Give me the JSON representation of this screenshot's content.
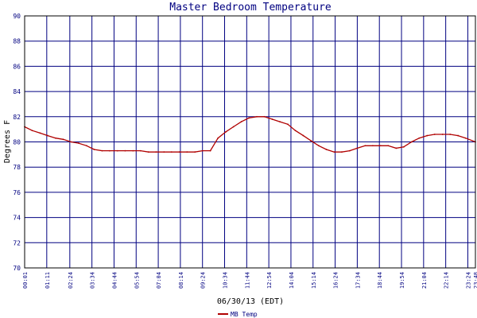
{
  "chart_data": {
    "type": "line",
    "title": "Master Bedroom Temperature",
    "xlabel": "06/30/13 (EDT)",
    "ylabel": "Degrees F",
    "ylim": [
      70,
      90
    ],
    "yticks": [
      70,
      72,
      74,
      76,
      78,
      80,
      82,
      84,
      86,
      88,
      90
    ],
    "xlim": [
      "00:01",
      "23:48"
    ],
    "xticks": [
      "00:01",
      "01:11",
      "02:24",
      "03:34",
      "04:44",
      "05:54",
      "07:04",
      "08:14",
      "09:24",
      "10:34",
      "11:44",
      "12:54",
      "14:04",
      "15:14",
      "16:24",
      "17:34",
      "18:44",
      "19:54",
      "21:04",
      "22:14",
      "23:24",
      "23:48"
    ],
    "grid": true,
    "legend": "bottom-left",
    "colors": {
      "grid": "#000080",
      "series": "#b00000",
      "text": "#000080",
      "frame": "#000000"
    },
    "series": [
      {
        "name": "MB Temp",
        "x": [
          "00:01",
          "00:25",
          "00:50",
          "01:14",
          "01:39",
          "02:03",
          "02:28",
          "02:52",
          "03:17",
          "03:41",
          "04:06",
          "04:30",
          "04:55",
          "05:19",
          "05:44",
          "06:08",
          "06:33",
          "06:57",
          "07:22",
          "07:46",
          "08:11",
          "08:35",
          "09:00",
          "09:24",
          "09:49",
          "10:13",
          "10:38",
          "11:02",
          "11:27",
          "11:51",
          "12:16",
          "12:40",
          "13:05",
          "13:29",
          "13:54",
          "14:18",
          "14:43",
          "15:07",
          "15:32",
          "15:56",
          "16:21",
          "16:45",
          "17:10",
          "17:34",
          "17:59",
          "18:23",
          "18:48",
          "19:12",
          "19:37",
          "20:01",
          "20:26",
          "20:50",
          "21:15",
          "21:39",
          "22:04",
          "22:28",
          "22:53",
          "23:17",
          "23:48"
        ],
        "y": [
          81.2,
          80.9,
          80.7,
          80.5,
          80.3,
          80.2,
          80.0,
          79.9,
          79.7,
          79.4,
          79.3,
          79.3,
          79.3,
          79.3,
          79.3,
          79.3,
          79.2,
          79.2,
          79.2,
          79.2,
          79.2,
          79.2,
          79.2,
          79.3,
          79.3,
          80.3,
          80.8,
          81.2,
          81.6,
          81.9,
          82.0,
          82.0,
          81.8,
          81.6,
          81.4,
          80.9,
          80.5,
          80.1,
          79.7,
          79.4,
          79.2,
          79.2,
          79.3,
          79.5,
          79.7,
          79.7,
          79.7,
          79.7,
          79.5,
          79.6,
          80.0,
          80.3,
          80.5,
          80.6,
          80.6,
          80.6,
          80.5,
          80.3,
          80.0
        ]
      }
    ]
  }
}
